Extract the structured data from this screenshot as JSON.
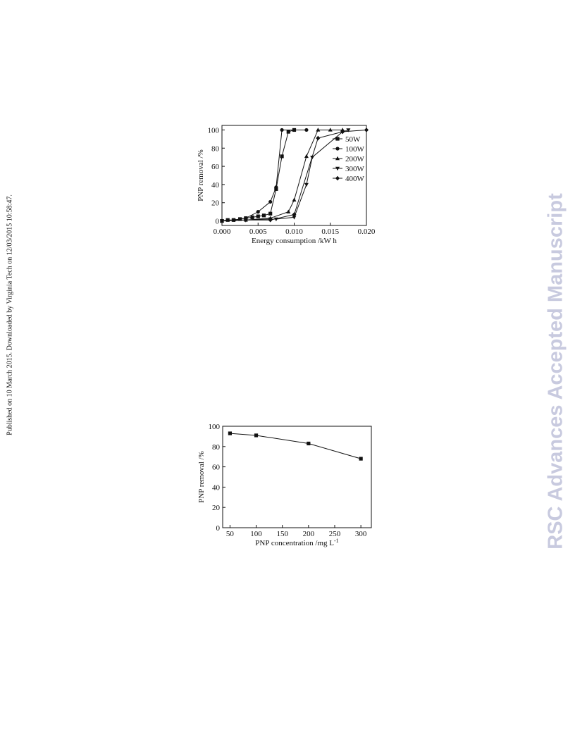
{
  "side_note": "Published on 10 March 2015. Downloaded by Virginia Tech on 12/03/2015 10:58:47.",
  "watermark": "RSC Advances Accepted Manuscript",
  "chart_data": [
    {
      "type": "line",
      "x_label": "Energy consumption /kW h",
      "y_label": "PNP removal /%",
      "xlim": [
        0,
        0.02
      ],
      "ylim": [
        -5,
        105
      ],
      "xticks": [
        {
          "value": 0,
          "label": "0.000"
        },
        {
          "value": 0.005,
          "label": "0.005"
        },
        {
          "value": 0.01,
          "label": "0.010"
        },
        {
          "value": 0.015,
          "label": "0.015"
        },
        {
          "value": 0.02,
          "label": "0.020"
        }
      ],
      "yticks": [
        0,
        20,
        40,
        60,
        80,
        100
      ],
      "legend": "top-right",
      "series": [
        {
          "name": "50W",
          "marker": "square",
          "color": "#111111",
          "x": [
            0,
            0.0008,
            0.0016,
            0.0025,
            0.0033,
            0.0042,
            0.005,
            0.0058,
            0.0067,
            0.0075,
            0.0083,
            0.0092,
            0.01
          ],
          "values": [
            0,
            1,
            1,
            2,
            3,
            4,
            5,
            6,
            8,
            35,
            71,
            98,
            100
          ]
        },
        {
          "name": "100W",
          "marker": "circle",
          "color": "#111111",
          "x": [
            0,
            0.0017,
            0.0033,
            0.005,
            0.0067,
            0.0075,
            0.0083,
            0.0117
          ],
          "values": [
            0,
            1,
            3,
            10,
            21,
            37,
            100,
            100
          ]
        },
        {
          "name": "200W",
          "marker": "triangle-up",
          "color": "#111111",
          "x": [
            0,
            0.0033,
            0.0067,
            0.0092,
            0.01,
            0.0117,
            0.0133,
            0.015,
            0.0167
          ],
          "values": [
            0,
            1,
            3,
            10,
            23,
            71,
            100,
            100,
            100
          ]
        },
        {
          "name": "300W",
          "marker": "triangle-down",
          "color": "#111111",
          "x": [
            0,
            0.0033,
            0.0067,
            0.0075,
            0.01,
            0.0117,
            0.0125,
            0.0167,
            0.0175
          ],
          "values": [
            0,
            1,
            2,
            2,
            4,
            40,
            70,
            98,
            100
          ]
        },
        {
          "name": "400W",
          "marker": "diamond",
          "color": "#111111",
          "x": [
            0,
            0.0033,
            0.0067,
            0.01,
            0.0133,
            0.0167,
            0.02
          ],
          "values": [
            0,
            1,
            1,
            7,
            91,
            98,
            100
          ]
        }
      ]
    },
    {
      "type": "line",
      "x_label": "PNP concentration /mg L",
      "x_label_sup": "-1",
      "y_label": "PNP removal /%",
      "xlim": [
        36,
        320
      ],
      "ylim": [
        0,
        100
      ],
      "xticks": [
        50,
        100,
        150,
        200,
        250,
        300
      ],
      "yticks": [
        0,
        20,
        40,
        60,
        80,
        100
      ],
      "series": [
        {
          "marker": "square",
          "color": "#111111",
          "x": [
            50,
            100,
            200,
            300
          ],
          "values": [
            93,
            91,
            83,
            68
          ]
        }
      ]
    }
  ]
}
